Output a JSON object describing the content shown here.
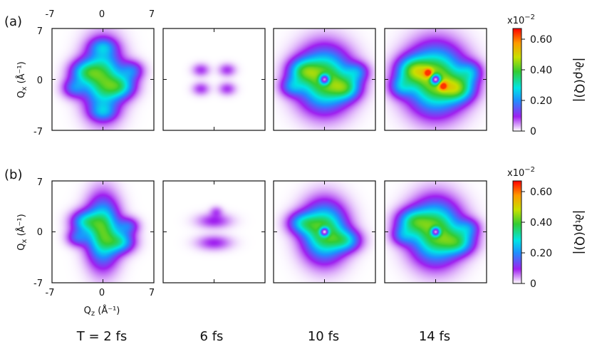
{
  "panel_labels": [
    "(a)",
    "(b)"
  ],
  "top_axis_ticks": [
    "-7",
    "0",
    "7"
  ],
  "time_labels": [
    "T = 2 fs",
    "6 fs",
    "10 fs",
    "14 fs"
  ],
  "colorbar": {
    "exponent": "x10",
    "exponent_power": "−2",
    "ticks": [
      "0",
      "0.20",
      "0.40",
      "0.60"
    ],
    "label": "|∂ₜρ(Q)|"
  },
  "colormap": [
    "#ffffff",
    "#a020f0",
    "#1e90ff",
    "#00e5e5",
    "#33cc33",
    "#c8e000",
    "#ff9900",
    "#ff0000"
  ],
  "chart_data": {
    "type": "heatmap",
    "xlabel": "Q",
    "xlabel_sub": "z",
    "xlabel_unit": " (Å⁻¹)",
    "ylabel": "Q",
    "ylabel_sub": "x",
    "ylabel_unit": " (Å⁻¹)",
    "xlim": [
      -7,
      7
    ],
    "ylim": [
      -7,
      7
    ],
    "x_ticks": [
      "-7",
      "0",
      "7"
    ],
    "y_ticks": [
      "7",
      "0",
      "-7"
    ],
    "color_range": [
      0,
      0.0065
    ],
    "panels": [
      {
        "row": "a",
        "time": "2 fs",
        "peak": 0.0045,
        "blobs": [
          {
            "x": 0,
            "y": 0,
            "sx": 1.8,
            "sy": 3.2,
            "a": 0.0035
          },
          {
            "x": -2.5,
            "y": 1,
            "sx": 1.4,
            "sy": 1.1,
            "a": 0.0022
          },
          {
            "x": 2.5,
            "y": -1,
            "sx": 1.4,
            "sy": 1.1,
            "a": 0.0022
          },
          {
            "x": -4,
            "y": -1.2,
            "sx": 1.1,
            "sy": 0.9,
            "a": 0.0015
          },
          {
            "x": 4,
            "y": 1.2,
            "sx": 1.1,
            "sy": 0.9,
            "a": 0.0015
          },
          {
            "x": 0,
            "y": 4.5,
            "sx": 1.2,
            "sy": 0.8,
            "a": 0.0012
          },
          {
            "x": 0,
            "y": -4.5,
            "sx": 1.2,
            "sy": 0.8,
            "a": 0.0012
          }
        ]
      },
      {
        "row": "a",
        "time": "6 fs",
        "peak": 0.0009,
        "blobs": [
          {
            "x": -1.8,
            "y": 1.3,
            "sx": 0.8,
            "sy": 0.6,
            "a": 0.0008
          },
          {
            "x": 1.8,
            "y": 1.3,
            "sx": 0.8,
            "sy": 0.6,
            "a": 0.0008
          },
          {
            "x": -1.8,
            "y": -1.3,
            "sx": 0.8,
            "sy": 0.6,
            "a": 0.0008
          },
          {
            "x": 1.8,
            "y": -1.3,
            "sx": 0.8,
            "sy": 0.6,
            "a": 0.0008
          }
        ]
      },
      {
        "row": "a",
        "time": "10 fs",
        "peak": 0.005,
        "blobs": [
          {
            "x": 0,
            "y": 0,
            "sx": 2.4,
            "sy": 2.8,
            "a": 0.0042
          },
          {
            "x": -3,
            "y": 1.2,
            "sx": 1.4,
            "sy": 1.1,
            "a": 0.0022
          },
          {
            "x": 3,
            "y": -1.2,
            "sx": 1.4,
            "sy": 1.1,
            "a": 0.0022
          },
          {
            "x": -4.5,
            "y": -1,
            "sx": 1.1,
            "sy": 0.9,
            "a": 0.0015
          },
          {
            "x": 4.5,
            "y": 1,
            "sx": 1.1,
            "sy": 0.9,
            "a": 0.0015
          },
          {
            "x": 0,
            "y": 0,
            "sx": 0.5,
            "sy": 0.5,
            "a": -0.004
          }
        ]
      },
      {
        "row": "a",
        "time": "14 fs",
        "peak": 0.0062,
        "blobs": [
          {
            "x": 0,
            "y": 0,
            "sx": 2.6,
            "sy": 3.0,
            "a": 0.0045
          },
          {
            "x": -1,
            "y": 0.9,
            "sx": 0.4,
            "sy": 0.4,
            "a": 0.0022
          },
          {
            "x": 1,
            "y": -0.9,
            "sx": 0.4,
            "sy": 0.4,
            "a": 0.0022
          },
          {
            "x": -3.2,
            "y": 1.3,
            "sx": 1.5,
            "sy": 1.2,
            "a": 0.0025
          },
          {
            "x": 3.2,
            "y": -1.3,
            "sx": 1.5,
            "sy": 1.2,
            "a": 0.0025
          },
          {
            "x": -4.8,
            "y": -1,
            "sx": 1.1,
            "sy": 1.0,
            "a": 0.0016
          },
          {
            "x": 4.8,
            "y": 1,
            "sx": 1.1,
            "sy": 1.0,
            "a": 0.0016
          },
          {
            "x": 0,
            "y": 0,
            "sx": 0.5,
            "sy": 0.5,
            "a": -0.0045
          }
        ]
      },
      {
        "row": "b",
        "time": "2 fs",
        "peak": 0.0045,
        "blobs": [
          {
            "x": 0,
            "y": 0,
            "sx": 1.5,
            "sy": 3.0,
            "a": 0.0038
          },
          {
            "x": -2.5,
            "y": 1.4,
            "sx": 1.3,
            "sy": 1.0,
            "a": 0.0022
          },
          {
            "x": 2.5,
            "y": -1.4,
            "sx": 1.3,
            "sy": 1.0,
            "a": 0.0022
          },
          {
            "x": -3.5,
            "y": -0.8,
            "sx": 1.0,
            "sy": 0.8,
            "a": 0.0014
          },
          {
            "x": 3.5,
            "y": 0.8,
            "sx": 1.0,
            "sy": 0.8,
            "a": 0.0014
          }
        ]
      },
      {
        "row": "b",
        "time": "6 fs",
        "peak": 0.001,
        "blobs": [
          {
            "x": 0,
            "y": 1.5,
            "sx": 1.6,
            "sy": 0.7,
            "a": 0.0009
          },
          {
            "x": 0,
            "y": -1.5,
            "sx": 1.6,
            "sy": 0.7,
            "a": 0.0009
          },
          {
            "x": 0.3,
            "y": 2.8,
            "sx": 0.6,
            "sy": 0.5,
            "a": 0.0006
          }
        ]
      },
      {
        "row": "b",
        "time": "10 fs",
        "peak": 0.0045,
        "blobs": [
          {
            "x": 0,
            "y": 0,
            "sx": 2.0,
            "sy": 2.6,
            "a": 0.004
          },
          {
            "x": -3,
            "y": 1.2,
            "sx": 1.4,
            "sy": 1.0,
            "a": 0.002
          },
          {
            "x": 3,
            "y": -1.2,
            "sx": 1.4,
            "sy": 1.0,
            "a": 0.002
          },
          {
            "x": 0,
            "y": 0,
            "sx": 0.45,
            "sy": 0.45,
            "a": -0.004
          }
        ]
      },
      {
        "row": "b",
        "time": "14 fs",
        "peak": 0.0047,
        "blobs": [
          {
            "x": 0,
            "y": 0,
            "sx": 2.3,
            "sy": 2.8,
            "a": 0.0042
          },
          {
            "x": -3.2,
            "y": 1.5,
            "sx": 1.5,
            "sy": 1.1,
            "a": 0.0022
          },
          {
            "x": 3.2,
            "y": -1.5,
            "sx": 1.5,
            "sy": 1.1,
            "a": 0.0022
          },
          {
            "x": -4.5,
            "y": -0.5,
            "sx": 1.1,
            "sy": 0.9,
            "a": 0.0014
          },
          {
            "x": 4.5,
            "y": 0.5,
            "sx": 1.1,
            "sy": 0.9,
            "a": 0.0014
          },
          {
            "x": 0,
            "y": 0,
            "sx": 0.45,
            "sy": 0.45,
            "a": -0.004
          }
        ]
      }
    ]
  }
}
